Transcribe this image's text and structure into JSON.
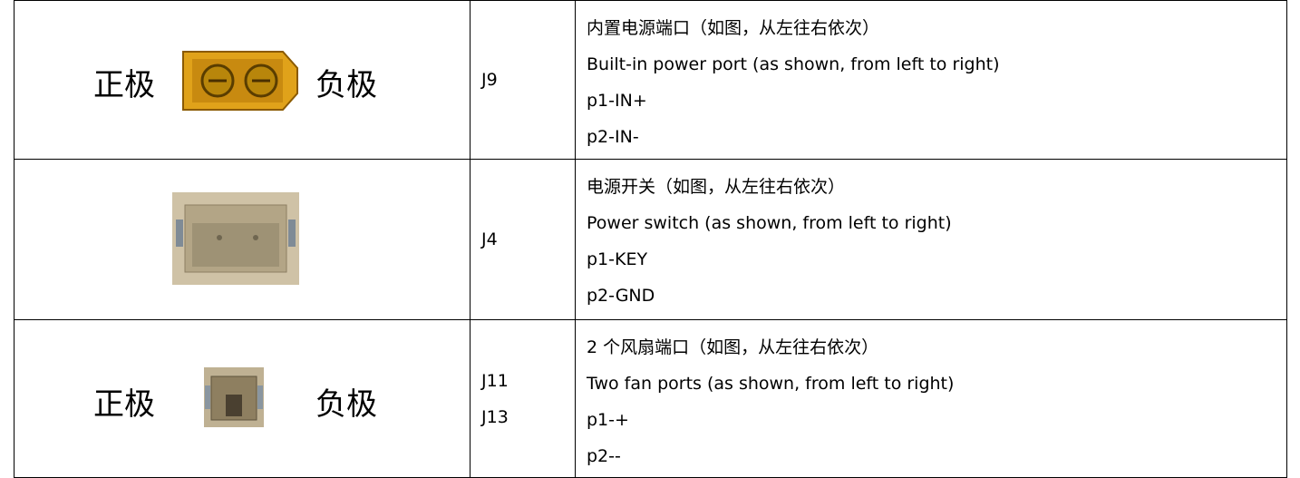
{
  "table": {
    "rows": [
      {
        "left_label": "正极",
        "right_label": "负极",
        "ids": [
          "J9"
        ],
        "lines": [
          "内置电源端口（如图，从左往右依次）",
          "Built-in power port (as shown, from left to right)",
          "p1-IN+",
          "p2-IN-"
        ]
      },
      {
        "ids": [
          "J4"
        ],
        "lines": [
          "电源开关（如图，从左往右依次）",
          "Power switch (as shown, from left to right)",
          "p1-KEY",
          "p2-GND"
        ]
      },
      {
        "left_label": "正极",
        "right_label": "负极",
        "ids": [
          "J11",
          "J13"
        ],
        "lines": [
          "2 个风扇端口（如图，从左往右依次）",
          "Two fan ports (as shown, from left to right)",
          "p1-+",
          "p2--"
        ]
      }
    ]
  }
}
